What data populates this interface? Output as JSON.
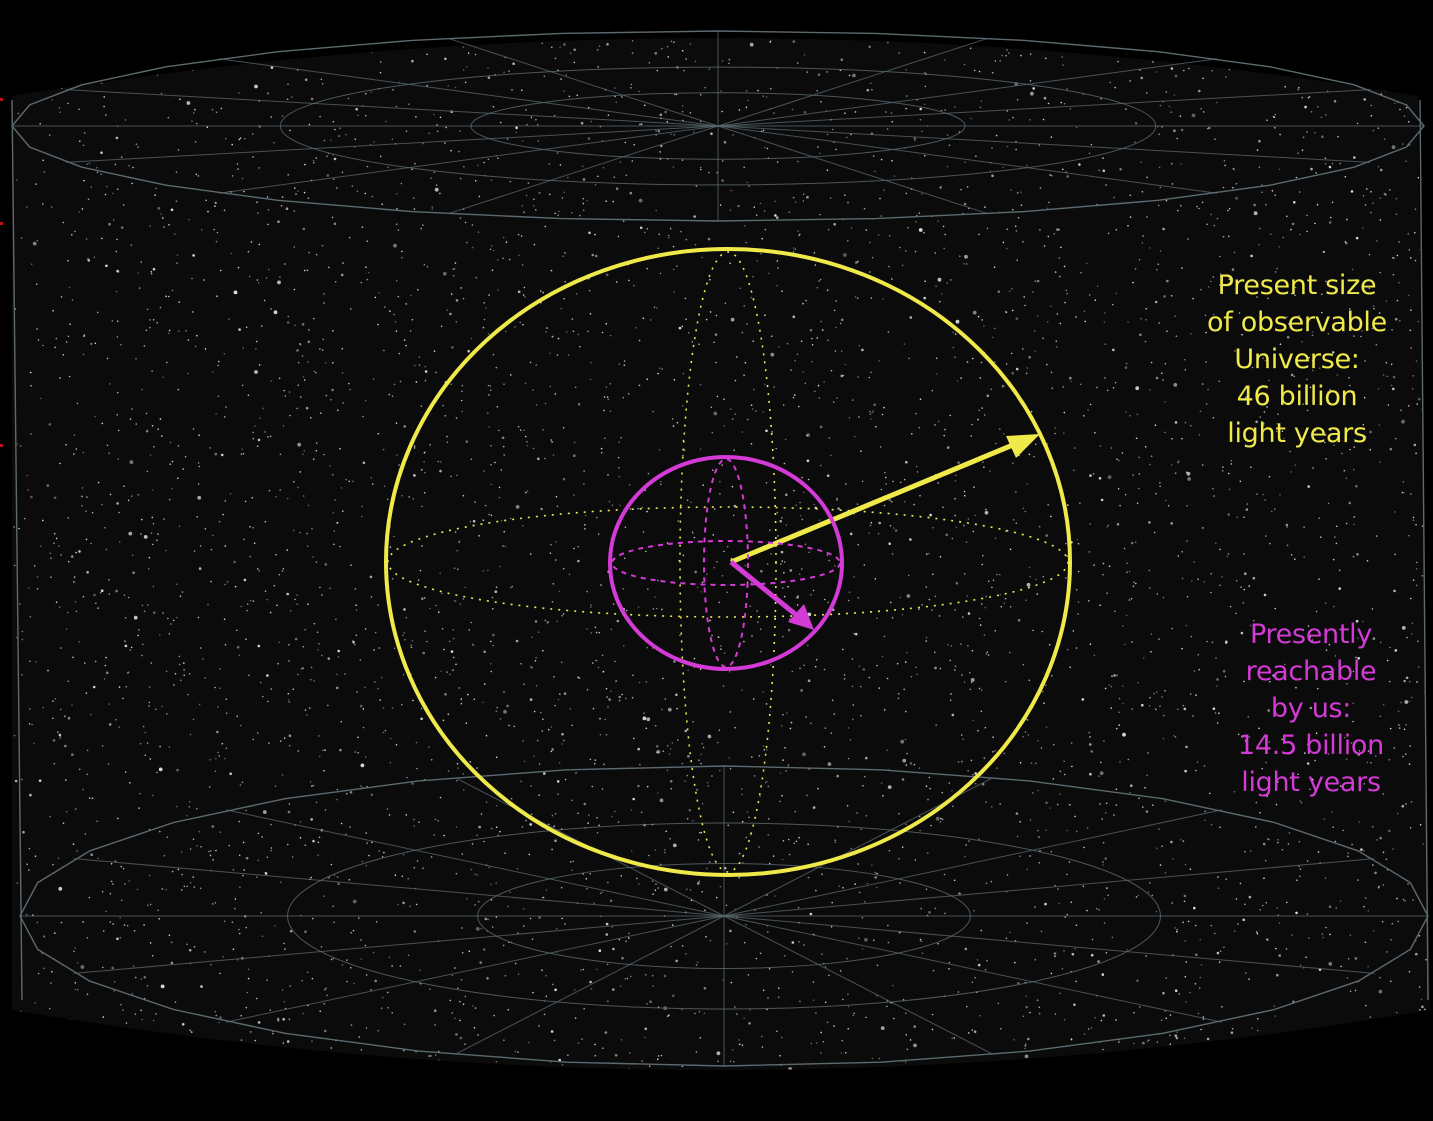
{
  "colors": {
    "background": "#000000",
    "panel": "#0b0b0c",
    "stars": "#e8e8e8",
    "wireframe": "#5c6a70",
    "observable": "#efe94a",
    "reachable": "#d43ad6",
    "edge_marks": "#c0121a"
  },
  "observable": {
    "lines": [
      "Present size",
      "of observable",
      "Universe:",
      "46 billion",
      "light years"
    ]
  },
  "reachable": {
    "lines": [
      "Presently",
      "reachable",
      "by us:",
      "14.5 billion",
      "light years"
    ]
  }
}
